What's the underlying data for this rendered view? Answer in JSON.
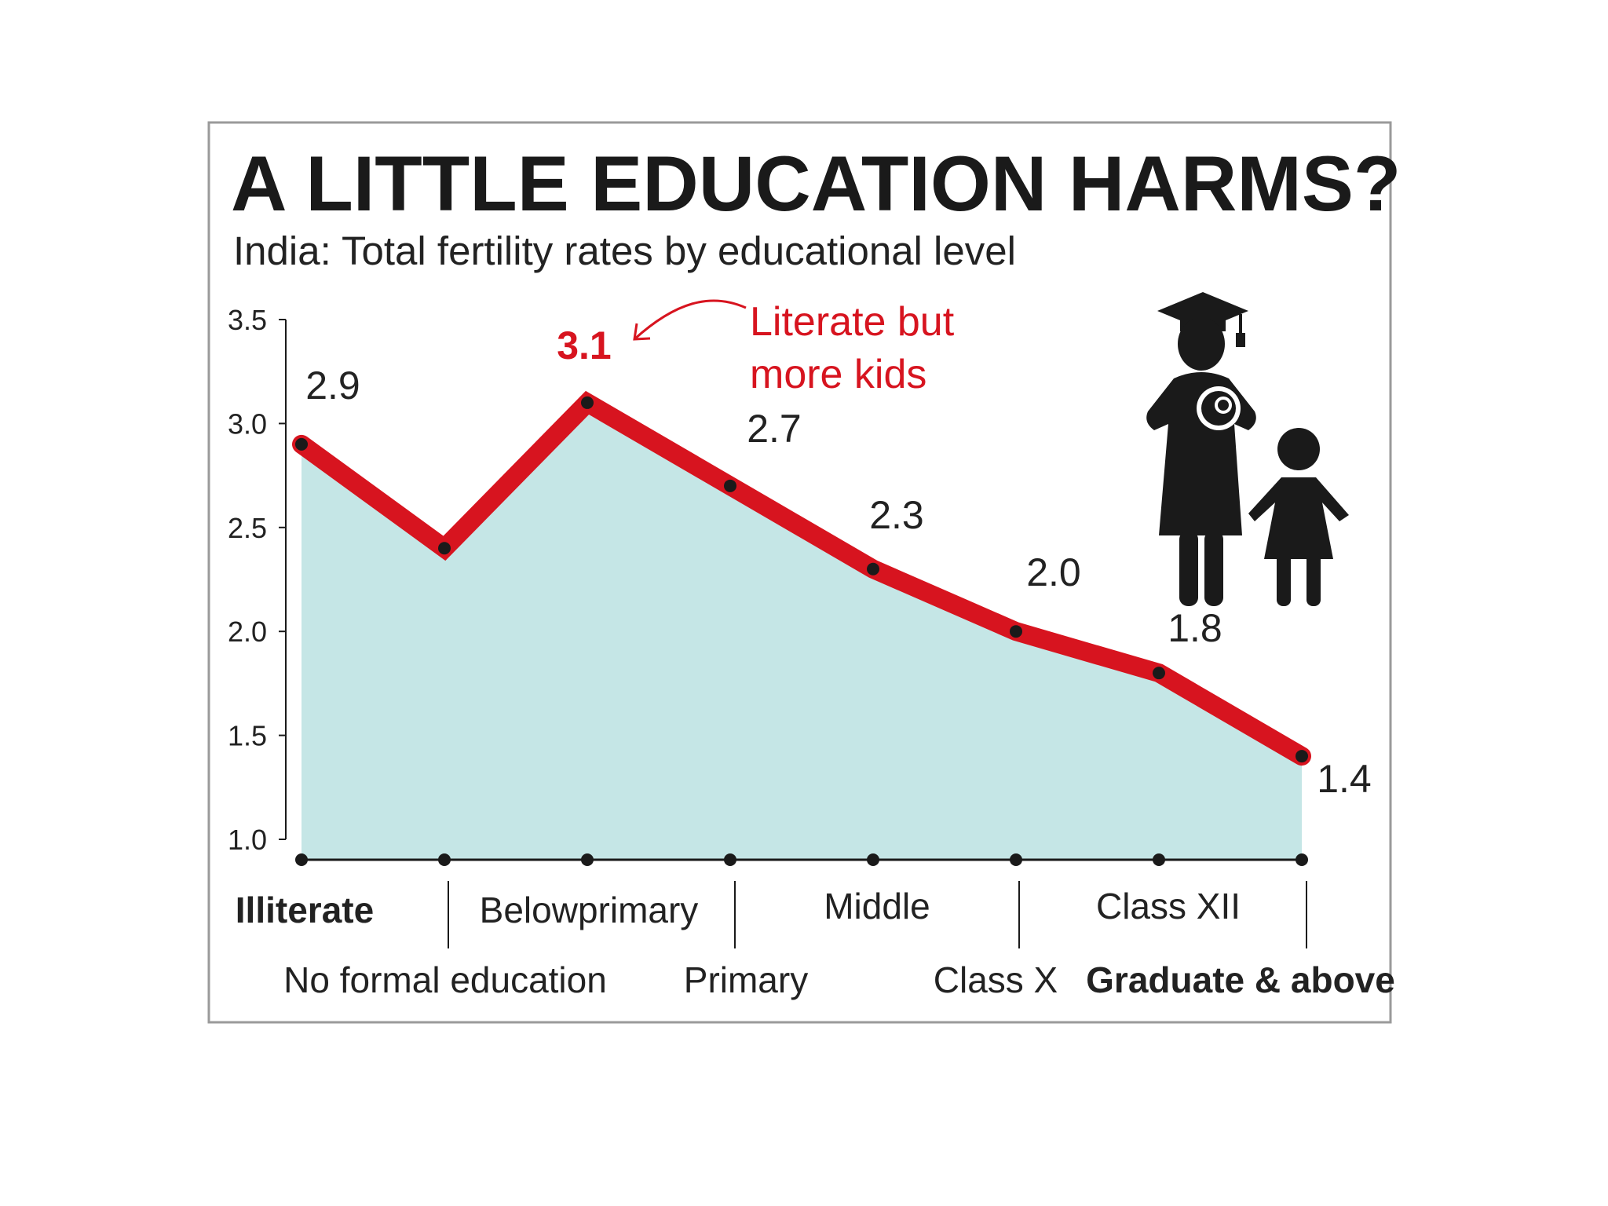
{
  "chart_data": {
    "type": "area",
    "title": "A LITTLE EDUCATION HARMS?",
    "subtitle": "India: Total fertility rates by educational level",
    "categories": [
      "Illiterate",
      "No formal education",
      "Belowprimary",
      "Primary",
      "Middle",
      "Class X",
      "Class XII",
      "Graduate & above"
    ],
    "values": [
      2.9,
      2.4,
      3.1,
      2.7,
      2.3,
      2.0,
      1.8,
      1.4
    ],
    "data_labels": [
      "2.9",
      "",
      "3.1",
      "2.7",
      "2.3",
      "2.0",
      "1.8",
      "1.4"
    ],
    "highlight_index": 2,
    "annotation": {
      "lines": [
        "Literate but",
        "more kids"
      ],
      "target_index": 2
    },
    "ylim": [
      1.0,
      3.5
    ],
    "yticks": [
      "1.0",
      "1.5",
      "2.0",
      "2.5",
      "3.0",
      "3.5"
    ],
    "grid": false,
    "legend": "none",
    "colors": {
      "line": "#d7141f",
      "fill": "#c5e6e6",
      "marker": "#1a1a1a",
      "axis": "#1a1a1a",
      "frame": "#9a9a9a",
      "annotation": "#d7141f"
    }
  }
}
